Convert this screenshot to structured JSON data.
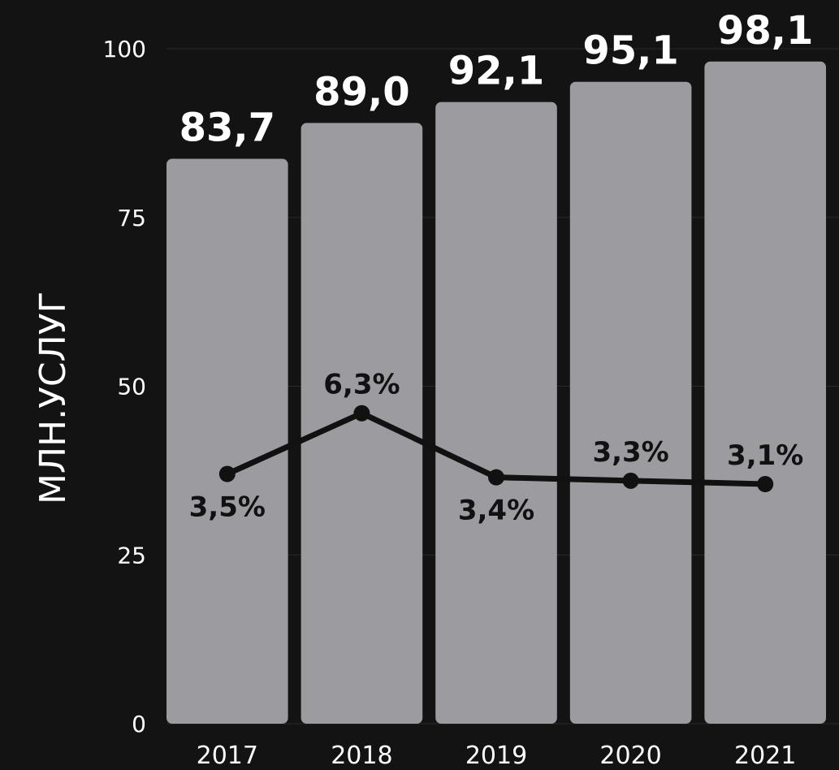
{
  "chart_data": {
    "type": "bar",
    "ylabel": "МЛН.УСЛУГ",
    "ylim": [
      0,
      100
    ],
    "yticks": [
      0,
      25,
      50,
      75,
      100
    ],
    "categories": [
      "2017",
      "2018",
      "2019",
      "2020",
      "2021"
    ],
    "values": [
      83.7,
      89.0,
      92.1,
      95.1,
      98.1
    ],
    "value_labels": [
      "83,7",
      "89,0",
      "92,1",
      "95,1",
      "98,1"
    ],
    "line": {
      "values": [
        37,
        46,
        36.5,
        36,
        35.5
      ],
      "labels": [
        "3,5%",
        "6,3%",
        "3,4%",
        "3,3%",
        "3,1%"
      ],
      "label_positions": [
        "below",
        "above",
        "below",
        "above",
        "above"
      ]
    },
    "grid": true,
    "colors": {
      "background": "#131313",
      "bar": "#9c9ca0",
      "line": "#111111",
      "value_label": "#ffffff",
      "line_label": "#111111",
      "axis_text": "#ffffff",
      "grid": "#2a2a2a"
    }
  }
}
